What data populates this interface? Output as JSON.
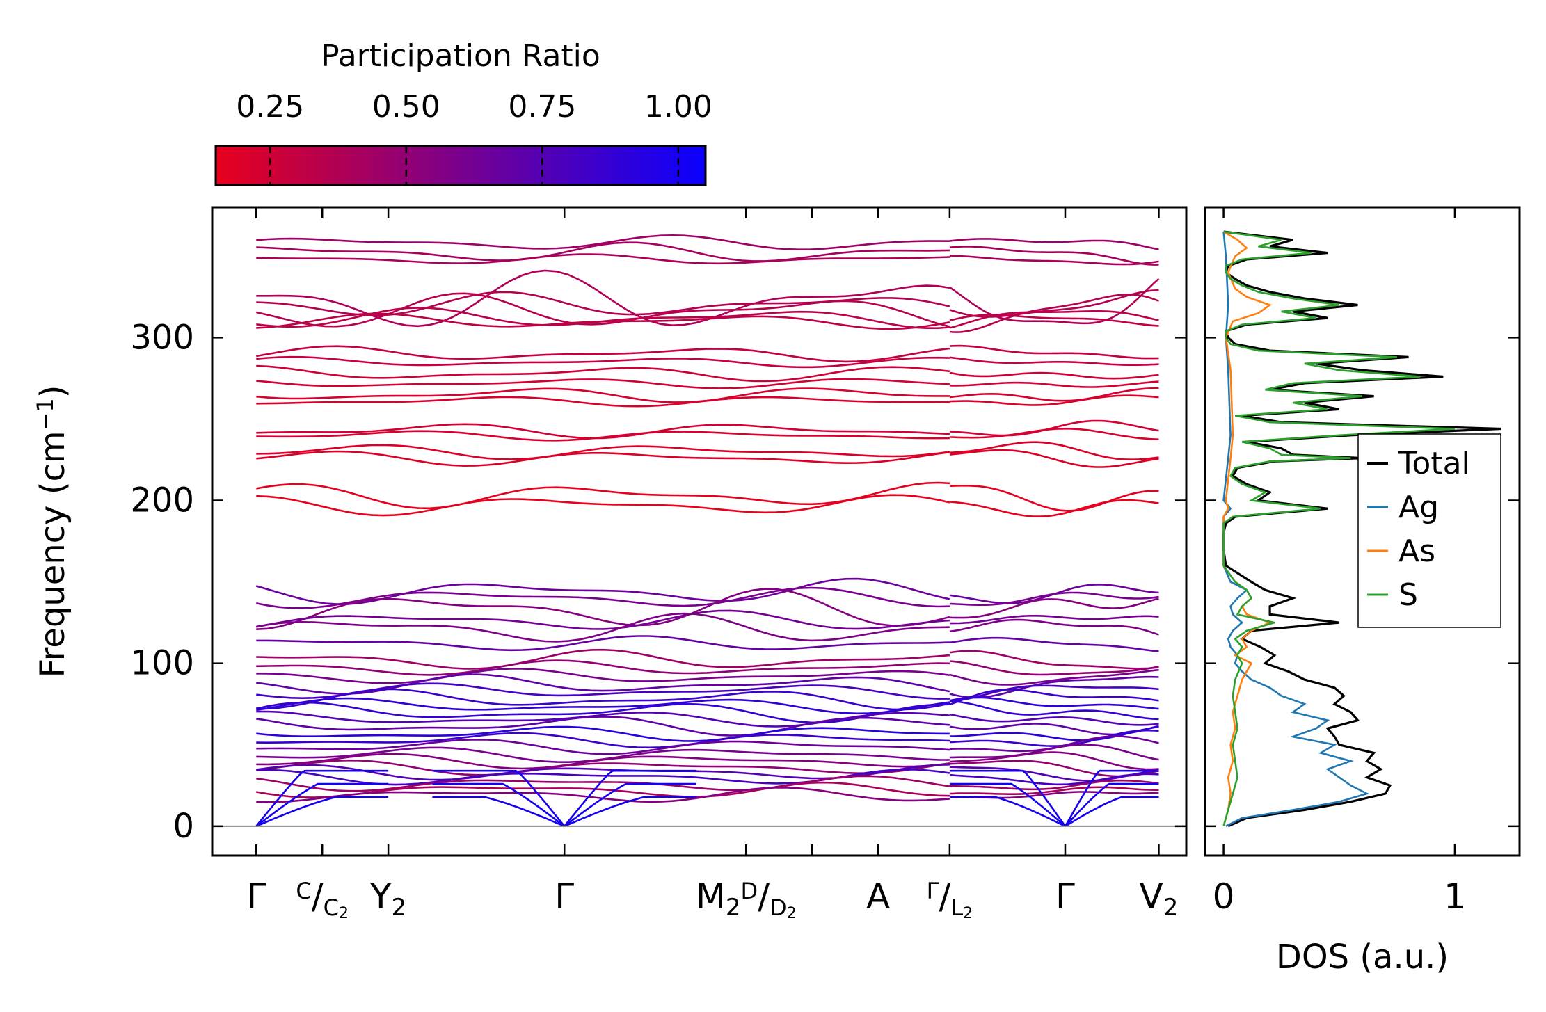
{
  "colors": {
    "low": "#e8001c",
    "high": "#0a00ff",
    "total": "#000000",
    "Ag": "#1f77b4",
    "As": "#ff7f0e",
    "S": "#2ca02c",
    "zero_line": "#888888"
  },
  "chart_data": [
    {
      "type": "line",
      "name": "phonon-dispersion",
      "title": "",
      "ylabel_main": "Frequency (cm",
      "ylabel_sup": "−1",
      "ylabel_end": ")",
      "ylim": [
        -18,
        380
      ],
      "yticks": [
        0,
        100,
        200,
        300
      ],
      "ytick_labels": [
        "0",
        "100",
        "200",
        "300"
      ],
      "colorbar": {
        "title": "Participation Ratio",
        "range": [
          0.15,
          1.05
        ],
        "ticks": [
          0.25,
          0.5,
          0.75,
          1.0
        ],
        "tick_labels": [
          "0.25",
          "0.50",
          "0.75",
          "1.00"
        ],
        "colormap": [
          "#e8001c",
          "#0a00ff"
        ]
      },
      "xlim": [
        -0.4,
        8.45
      ],
      "segments": [
        [
          0,
          6.3
        ],
        [
          6.3,
          8.2
        ]
      ],
      "special_points": [
        {
          "x": 0,
          "label": "Γ"
        },
        {
          "x": 0.6,
          "sup": "C",
          "sub": "C",
          "sub2": "2"
        },
        {
          "x": 1.2,
          "label": "Y",
          "sub": "2"
        },
        {
          "x": 2.8,
          "label": "Γ"
        },
        {
          "x": 4.45,
          "label": "M",
          "sub": "2",
          "sup_after": "D",
          "sub_after": "D",
          "sub_after2": "2"
        },
        {
          "x": 5.05,
          "label": ""
        },
        {
          "x": 5.65,
          "label": "A"
        },
        {
          "x": 6.3,
          "sup": "Γ",
          "sub": "L",
          "sub2": "2"
        },
        {
          "x": 7.35,
          "label": "Γ"
        },
        {
          "x": 8.2,
          "label": "V",
          "sub": "2"
        }
      ],
      "high_bands": [
        {
          "f": 358,
          "a": 3,
          "p": 0.45
        },
        {
          "f": 352,
          "a": 4,
          "p": 0.42
        },
        {
          "f": 348,
          "a": 2,
          "p": 0.4
        },
        {
          "f": 322,
          "a": 12,
          "p": 0.38
        },
        {
          "f": 320,
          "a": 5,
          "p": 0.36
        },
        {
          "f": 316,
          "a": 7,
          "p": 0.35
        },
        {
          "f": 312,
          "a": 4,
          "p": 0.33
        },
        {
          "f": 310,
          "a": 3,
          "p": 0.32
        },
        {
          "f": 290,
          "a": 3,
          "p": 0.3
        },
        {
          "f": 285,
          "a": 2,
          "p": 0.28
        },
        {
          "f": 278,
          "a": 3,
          "p": 0.26
        },
        {
          "f": 272,
          "a": 2,
          "p": 0.24
        },
        {
          "f": 265,
          "a": 3,
          "p": 0.22
        },
        {
          "f": 261,
          "a": 2,
          "p": 0.21
        },
        {
          "f": 243,
          "a": 3,
          "p": 0.24
        },
        {
          "f": 240,
          "a": 2,
          "p": 0.22
        },
        {
          "f": 230,
          "a": 3,
          "p": 0.2
        },
        {
          "f": 226,
          "a": 3,
          "p": 0.2
        },
        {
          "f": 203,
          "a": 5,
          "p": 0.16
        },
        {
          "f": 197,
          "a": 4,
          "p": 0.15
        }
      ],
      "low_bands": [
        {
          "f": 144,
          "a": 5,
          "p": 0.65
        },
        {
          "f": 140,
          "a": 4,
          "p": 0.6
        },
        {
          "f": 133,
          "a": 8,
          "p": 0.55
        },
        {
          "f": 126,
          "a": 4,
          "p": 0.62
        },
        {
          "f": 121,
          "a": 6,
          "p": 0.58
        },
        {
          "f": 112,
          "a": 3,
          "p": 0.68
        },
        {
          "f": 102,
          "a": 4,
          "p": 0.45
        },
        {
          "f": 97,
          "a": 3,
          "p": 0.5
        },
        {
          "f": 92,
          "a": 3,
          "p": 0.6
        },
        {
          "f": 87,
          "a": 4,
          "p": 0.7
        },
        {
          "f": 83,
          "a": 3,
          "p": 0.8
        },
        {
          "f": 78,
          "a": 4,
          "p": 0.85
        },
        {
          "f": 74,
          "a": 3,
          "p": 0.9
        },
        {
          "f": 70,
          "a": 4,
          "p": 0.88
        },
        {
          "f": 66,
          "a": 3,
          "p": 0.75
        },
        {
          "f": 62,
          "a": 4,
          "p": 0.7
        },
        {
          "f": 57,
          "a": 3,
          "p": 0.92
        },
        {
          "f": 53,
          "a": 3,
          "p": 0.85
        },
        {
          "f": 49,
          "a": 3,
          "p": 0.65
        },
        {
          "f": 44,
          "a": 3,
          "p": 0.6
        },
        {
          "f": 40,
          "a": 3,
          "p": 0.55
        },
        {
          "f": 36,
          "a": 3,
          "p": 0.5
        },
        {
          "f": 33,
          "a": 3,
          "p": 0.75
        },
        {
          "f": 30,
          "a": 3,
          "p": 0.8
        },
        {
          "f": 26,
          "a": 3,
          "p": 0.45
        },
        {
          "f": 22,
          "a": 3,
          "p": 0.4
        },
        {
          "f": 19,
          "a": 3,
          "p": 0.55
        }
      ]
    },
    {
      "type": "line",
      "name": "density-of-states",
      "xlabel": "DOS (a.u.)",
      "xlim": [
        -0.08,
        1.28
      ],
      "xticks": [
        0,
        1
      ],
      "xtick_labels": [
        "0",
        "1"
      ],
      "ylim": [
        -18,
        380
      ],
      "legend": {
        "placement": "center-right",
        "labels": [
          "Total",
          "Ag",
          "As",
          "S"
        ]
      },
      "series": [
        {
          "name": "Total",
          "color": "#000000",
          "freq": [
            0,
            5,
            10,
            15,
            20,
            25,
            30,
            35,
            40,
            45,
            50,
            55,
            60,
            65,
            70,
            75,
            80,
            85,
            90,
            95,
            100,
            105,
            110,
            115,
            120,
            125,
            130,
            135,
            140,
            145,
            150,
            160,
            170,
            180,
            186,
            190,
            195,
            200,
            205,
            210,
            215,
            220,
            224,
            226,
            228,
            232,
            236,
            240,
            244,
            248,
            252,
            256,
            260,
            264,
            268,
            272,
            276,
            280,
            284,
            288,
            292,
            296,
            300,
            304,
            308,
            312,
            316,
            320,
            324,
            328,
            332,
            336,
            340,
            344,
            348,
            352,
            356,
            360,
            365
          ],
          "value": [
            0.02,
            0.1,
            0.35,
            0.55,
            0.7,
            0.72,
            0.62,
            0.68,
            0.62,
            0.65,
            0.5,
            0.48,
            0.45,
            0.58,
            0.55,
            0.48,
            0.52,
            0.48,
            0.35,
            0.28,
            0.18,
            0.22,
            0.16,
            0.08,
            0.12,
            0.5,
            0.2,
            0.2,
            0.3,
            0.18,
            0.12,
            0.01,
            0.0,
            0.0,
            0.01,
            0.05,
            0.45,
            0.15,
            0.2,
            0.1,
            0.04,
            0.06,
            0.22,
            0.6,
            0.3,
            0.25,
            0.1,
            0.55,
            1.2,
            0.25,
            0.08,
            0.5,
            0.35,
            0.65,
            0.2,
            0.35,
            0.95,
            0.6,
            0.4,
            0.8,
            0.2,
            0.05,
            0.02,
            0.01,
            0.1,
            0.45,
            0.3,
            0.58,
            0.35,
            0.2,
            0.1,
            0.05,
            0.01,
            0.02,
            0.1,
            0.45,
            0.2,
            0.3,
            0.0
          ]
        },
        {
          "name": "Ag",
          "color": "#1f77b4",
          "freq": [
            0,
            5,
            10,
            15,
            20,
            25,
            30,
            35,
            40,
            45,
            50,
            55,
            60,
            65,
            70,
            75,
            80,
            85,
            90,
            95,
            100,
            105,
            110,
            115,
            120,
            125,
            130,
            135,
            140,
            145,
            150,
            160,
            190,
            195,
            200,
            226,
            240,
            280,
            300,
            320,
            350,
            365
          ],
          "value": [
            0.01,
            0.08,
            0.3,
            0.5,
            0.62,
            0.55,
            0.5,
            0.45,
            0.55,
            0.42,
            0.48,
            0.3,
            0.4,
            0.45,
            0.3,
            0.35,
            0.25,
            0.2,
            0.12,
            0.08,
            0.05,
            0.06,
            0.03,
            0.02,
            0.04,
            0.08,
            0.04,
            0.03,
            0.06,
            0.1,
            0.03,
            0.0,
            0.0,
            0.03,
            0.0,
            0.02,
            0.03,
            0.02,
            0.01,
            0.02,
            0.01,
            0.0
          ]
        },
        {
          "name": "As",
          "color": "#ff7f0e",
          "freq": [
            0,
            10,
            20,
            30,
            40,
            50,
            60,
            70,
            80,
            90,
            100,
            105,
            110,
            115,
            120,
            125,
            130,
            135,
            140,
            145,
            150,
            160,
            190,
            195,
            200,
            226,
            240,
            280,
            300,
            310,
            315,
            320,
            325,
            330,
            340,
            350,
            355,
            360,
            365
          ],
          "value": [
            0.0,
            0.02,
            0.03,
            0.02,
            0.04,
            0.03,
            0.05,
            0.04,
            0.06,
            0.08,
            0.12,
            0.05,
            0.1,
            0.08,
            0.12,
            0.2,
            0.1,
            0.08,
            0.12,
            0.1,
            0.05,
            0.0,
            0.0,
            0.02,
            0.01,
            0.03,
            0.04,
            0.03,
            0.01,
            0.04,
            0.15,
            0.2,
            0.1,
            0.05,
            0.02,
            0.05,
            0.1,
            0.06,
            0.0
          ]
        },
        {
          "name": "S",
          "color": "#2ca02c",
          "freq": [
            0,
            10,
            20,
            30,
            40,
            50,
            60,
            70,
            80,
            90,
            100,
            105,
            110,
            115,
            120,
            125,
            130,
            135,
            140,
            145,
            150,
            160,
            170,
            180,
            186,
            190,
            195,
            200,
            205,
            210,
            215,
            220,
            224,
            226,
            228,
            232,
            236,
            240,
            244,
            248,
            252,
            256,
            260,
            264,
            268,
            272,
            276,
            280,
            284,
            288,
            292,
            296,
            300,
            304,
            308,
            312,
            316,
            320,
            324,
            328,
            332,
            336,
            340,
            344,
            348,
            352,
            356,
            360,
            365
          ],
          "value": [
            0.0,
            0.02,
            0.04,
            0.06,
            0.05,
            0.04,
            0.06,
            0.05,
            0.04,
            0.05,
            0.08,
            0.06,
            0.08,
            0.05,
            0.1,
            0.22,
            0.06,
            0.08,
            0.12,
            0.1,
            0.05,
            0.0,
            0.0,
            0.0,
            0.0,
            0.04,
            0.42,
            0.12,
            0.18,
            0.08,
            0.03,
            0.05,
            0.2,
            0.55,
            0.25,
            0.2,
            0.08,
            0.5,
            1.0,
            0.2,
            0.05,
            0.45,
            0.3,
            0.6,
            0.18,
            0.3,
            0.85,
            0.5,
            0.35,
            0.75,
            0.15,
            0.03,
            0.01,
            0.01,
            0.08,
            0.4,
            0.25,
            0.5,
            0.3,
            0.15,
            0.08,
            0.03,
            0.01,
            0.01,
            0.08,
            0.38,
            0.15,
            0.25,
            0.0
          ]
        }
      ]
    }
  ]
}
